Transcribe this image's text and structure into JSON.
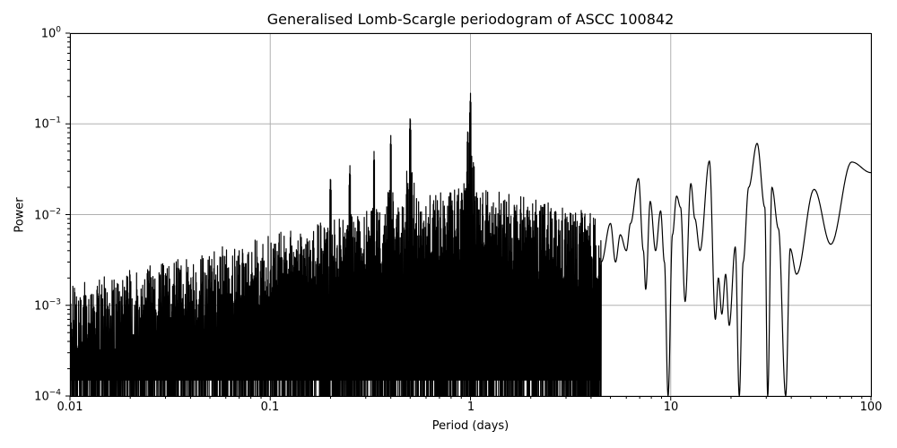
{
  "chart_data": {
    "type": "line",
    "title": "Generalised Lomb-Scargle periodogram of ASCC 100842",
    "xlabel": "Period (days)",
    "ylabel": "Power",
    "xscale": "log",
    "yscale": "log",
    "xlim": [
      0.01,
      100
    ],
    "ylim": [
      0.0001,
      1
    ],
    "grid": true,
    "legend": null,
    "x_ticks": [
      "0.01",
      "0.1",
      "1",
      "10",
      "100"
    ],
    "y_ticks": [
      {
        "base": "10",
        "exp": "0"
      },
      {
        "base": "10",
        "exp": "−1"
      },
      {
        "base": "10",
        "exp": "−2"
      },
      {
        "base": "10",
        "exp": "−3"
      },
      {
        "base": "10",
        "exp": "−4"
      }
    ],
    "line_color": "#000000",
    "grid_color": "#b0b0b0",
    "notable_peaks": [
      {
        "period": 1.0,
        "power": 0.22
      },
      {
        "period": 0.5,
        "power": 0.125
      },
      {
        "period": 0.97,
        "power": 0.09
      },
      {
        "period": 0.4,
        "power": 0.075
      },
      {
        "period": 0.33,
        "power": 0.05
      },
      {
        "period": 0.25,
        "power": 0.035
      },
      {
        "period": 0.2,
        "power": 0.027
      },
      {
        "period": 7.0,
        "power": 0.025
      },
      {
        "period": 12.5,
        "power": 0.022
      },
      {
        "period": 15.5,
        "power": 0.039
      },
      {
        "period": 27.0,
        "power": 0.061
      },
      {
        "period": 31.5,
        "power": 0.02
      },
      {
        "period": 38.0,
        "power": 0.0042
      },
      {
        "period": 52.0,
        "power": 0.019
      },
      {
        "period": 80.0,
        "power": 0.038
      },
      {
        "period": 100.0,
        "power": 0.029
      }
    ],
    "long_period_curve": [
      [
        4.5,
        0.003
      ],
      [
        5.0,
        0.008
      ],
      [
        5.3,
        0.003
      ],
      [
        5.6,
        0.006
      ],
      [
        6.0,
        0.004
      ],
      [
        6.3,
        0.008
      ],
      [
        6.9,
        0.025
      ],
      [
        7.3,
        0.004
      ],
      [
        7.5,
        0.0015
      ],
      [
        7.9,
        0.014
      ],
      [
        8.4,
        0.004
      ],
      [
        8.9,
        0.011
      ],
      [
        9.3,
        0.003
      ],
      [
        9.7,
        0.0001
      ],
      [
        10.2,
        0.006
      ],
      [
        10.7,
        0.016
      ],
      [
        11.2,
        0.012
      ],
      [
        11.8,
        0.0011
      ],
      [
        12.6,
        0.022
      ],
      [
        13.2,
        0.009
      ],
      [
        14.0,
        0.004
      ],
      [
        15.6,
        0.039
      ],
      [
        16.7,
        0.0007
      ],
      [
        17.3,
        0.002
      ],
      [
        18.0,
        0.0008
      ],
      [
        18.8,
        0.0022
      ],
      [
        19.6,
        0.0006
      ],
      [
        21.0,
        0.0044
      ],
      [
        22.0,
        0.0001
      ],
      [
        23.0,
        0.003
      ],
      [
        24.5,
        0.02
      ],
      [
        27.0,
        0.061
      ],
      [
        29.5,
        0.012
      ],
      [
        30.5,
        0.0001
      ],
      [
        32.0,
        0.02
      ],
      [
        34.5,
        0.007
      ],
      [
        37.5,
        0.0001
      ],
      [
        39.5,
        0.0042
      ],
      [
        42.5,
        0.0022
      ],
      [
        52.0,
        0.019
      ],
      [
        63.0,
        0.0047
      ],
      [
        80.0,
        0.038
      ],
      [
        100.0,
        0.029
      ]
    ]
  }
}
